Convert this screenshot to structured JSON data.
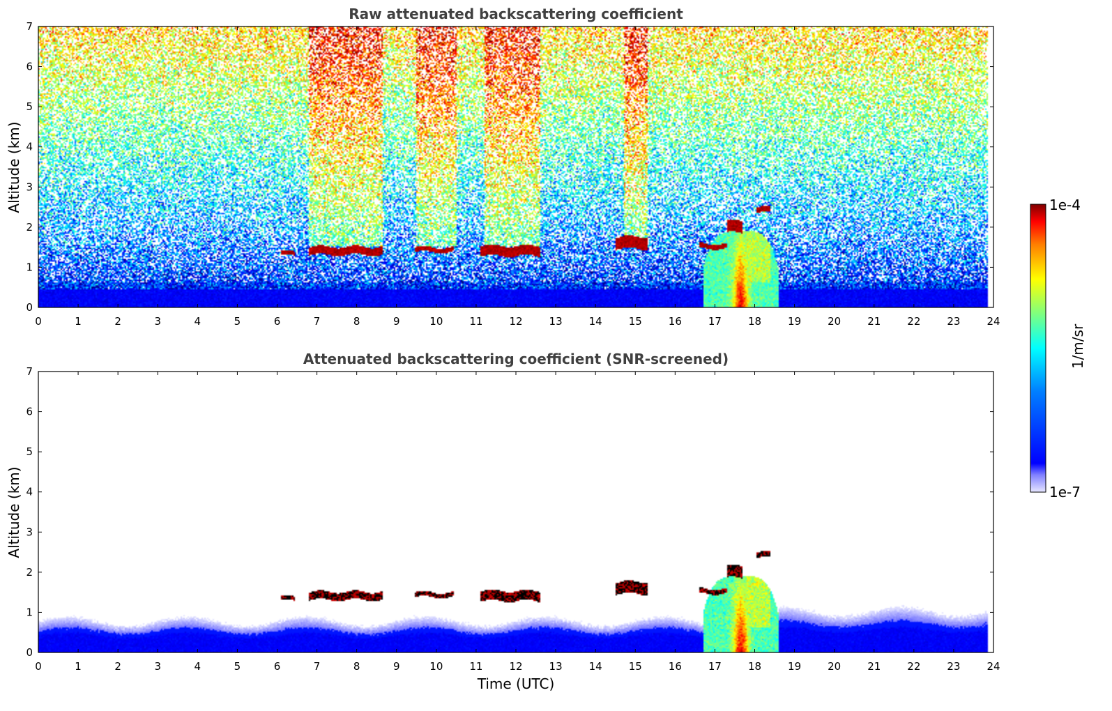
{
  "colors": {
    "jet": [
      "#00007f",
      "#0000ff",
      "#007fff",
      "#00ffff",
      "#7fff7f",
      "#ffff00",
      "#ff7f00",
      "#ff0000",
      "#7f0000"
    ],
    "low_shade": "#e6e6ff",
    "text_title": "#404040"
  },
  "colorbar": {
    "max_label": "1e-4",
    "min_label": "1e-7",
    "unit_label": "1/m/sr",
    "scale": "log"
  },
  "chart_data": [
    {
      "type": "heatmap",
      "title": "Raw attenuated backscattering coefficient",
      "xlabel": "",
      "ylabel": "Altitude (km)",
      "xlim": [
        0,
        24
      ],
      "ylim": [
        0,
        7
      ],
      "xticks": [
        "0",
        "1",
        "2",
        "3",
        "4",
        "5",
        "6",
        "7",
        "8",
        "9",
        "10",
        "11",
        "12",
        "13",
        "14",
        "15",
        "16",
        "17",
        "18",
        "19",
        "20",
        "21",
        "22",
        "23",
        "24"
      ],
      "yticks": [
        "0",
        "1",
        "2",
        "3",
        "4",
        "5",
        "6",
        "7"
      ],
      "data_end_time": 23.85,
      "features": [
        {
          "kind": "boundary_layer",
          "t0": 0,
          "t1": 23.85,
          "top_km": 0.45
        },
        {
          "kind": "high_noise_band",
          "t0": 6.8,
          "t1": 8.65
        },
        {
          "kind": "high_noise_band",
          "t0": 9.5,
          "t1": 10.5
        },
        {
          "kind": "high_noise_band",
          "t0": 11.2,
          "t1": 12.6
        },
        {
          "kind": "high_noise_band",
          "t0": 14.7,
          "t1": 15.3
        },
        {
          "kind": "cloud_layer",
          "t0": 6.1,
          "t1": 6.45,
          "alt_km": 1.33,
          "thick_km": 0.1
        },
        {
          "kind": "cloud_layer",
          "t0": 6.8,
          "t1": 8.65,
          "alt_km": 1.4,
          "thick_km": 0.2
        },
        {
          "kind": "cloud_layer",
          "t0": 9.45,
          "t1": 10.45,
          "alt_km": 1.43,
          "thick_km": 0.12
        },
        {
          "kind": "cloud_layer",
          "t0": 11.1,
          "t1": 12.6,
          "alt_km": 1.4,
          "thick_km": 0.25
        },
        {
          "kind": "cloud_layer",
          "t0": 14.5,
          "t1": 15.3,
          "alt_km": 1.6,
          "thick_km": 0.3
        },
        {
          "kind": "cloud_layer",
          "t0": 16.6,
          "t1": 17.3,
          "alt_km": 1.52,
          "thick_km": 0.12
        },
        {
          "kind": "cloud_layer",
          "t0": 17.3,
          "t1": 17.7,
          "alt_km": 2.0,
          "thick_km": 0.3
        },
        {
          "kind": "cloud_layer",
          "t0": 18.05,
          "t1": 18.4,
          "alt_km": 2.42,
          "thick_km": 0.14
        },
        {
          "kind": "precip_plume",
          "t0": 16.7,
          "t1": 18.6,
          "top_km": 1.9
        }
      ]
    },
    {
      "type": "heatmap",
      "title": "Attenuated backscattering coefficient (SNR-screened)",
      "xlabel": "Time (UTC)",
      "ylabel": "Altitude (km)",
      "xlim": [
        0,
        24
      ],
      "ylim": [
        0,
        7
      ],
      "xticks": [
        "0",
        "1",
        "2",
        "3",
        "4",
        "5",
        "6",
        "7",
        "8",
        "9",
        "10",
        "11",
        "12",
        "13",
        "14",
        "15",
        "16",
        "17",
        "18",
        "19",
        "20",
        "21",
        "22",
        "23",
        "24"
      ],
      "yticks": [
        "0",
        "1",
        "2",
        "3",
        "4",
        "5",
        "6",
        "7"
      ],
      "data_end_time": 23.85,
      "features": [
        {
          "kind": "boundary_layer_screened",
          "t0": 0,
          "t1": 16.7,
          "top_km": 0.75
        },
        {
          "kind": "boundary_layer_screened",
          "t0": 18.6,
          "t1": 23.85,
          "top_km": 1.0
        },
        {
          "kind": "cloud_layer",
          "t0": 6.1,
          "t1": 6.45,
          "alt_km": 1.33,
          "thick_km": 0.1
        },
        {
          "kind": "cloud_layer",
          "t0": 6.8,
          "t1": 8.65,
          "alt_km": 1.4,
          "thick_km": 0.2
        },
        {
          "kind": "cloud_layer",
          "t0": 9.45,
          "t1": 10.45,
          "alt_km": 1.43,
          "thick_km": 0.12
        },
        {
          "kind": "cloud_layer",
          "t0": 11.1,
          "t1": 12.6,
          "alt_km": 1.4,
          "thick_km": 0.25
        },
        {
          "kind": "cloud_layer",
          "t0": 14.5,
          "t1": 15.3,
          "alt_km": 1.6,
          "thick_km": 0.3
        },
        {
          "kind": "cloud_layer",
          "t0": 16.6,
          "t1": 17.3,
          "alt_km": 1.52,
          "thick_km": 0.12
        },
        {
          "kind": "cloud_layer",
          "t0": 17.3,
          "t1": 17.7,
          "alt_km": 2.0,
          "thick_km": 0.3
        },
        {
          "kind": "cloud_layer",
          "t0": 18.05,
          "t1": 18.4,
          "alt_km": 2.42,
          "thick_km": 0.14
        },
        {
          "kind": "precip_plume",
          "t0": 16.7,
          "t1": 18.6,
          "top_km": 1.9
        }
      ]
    }
  ]
}
